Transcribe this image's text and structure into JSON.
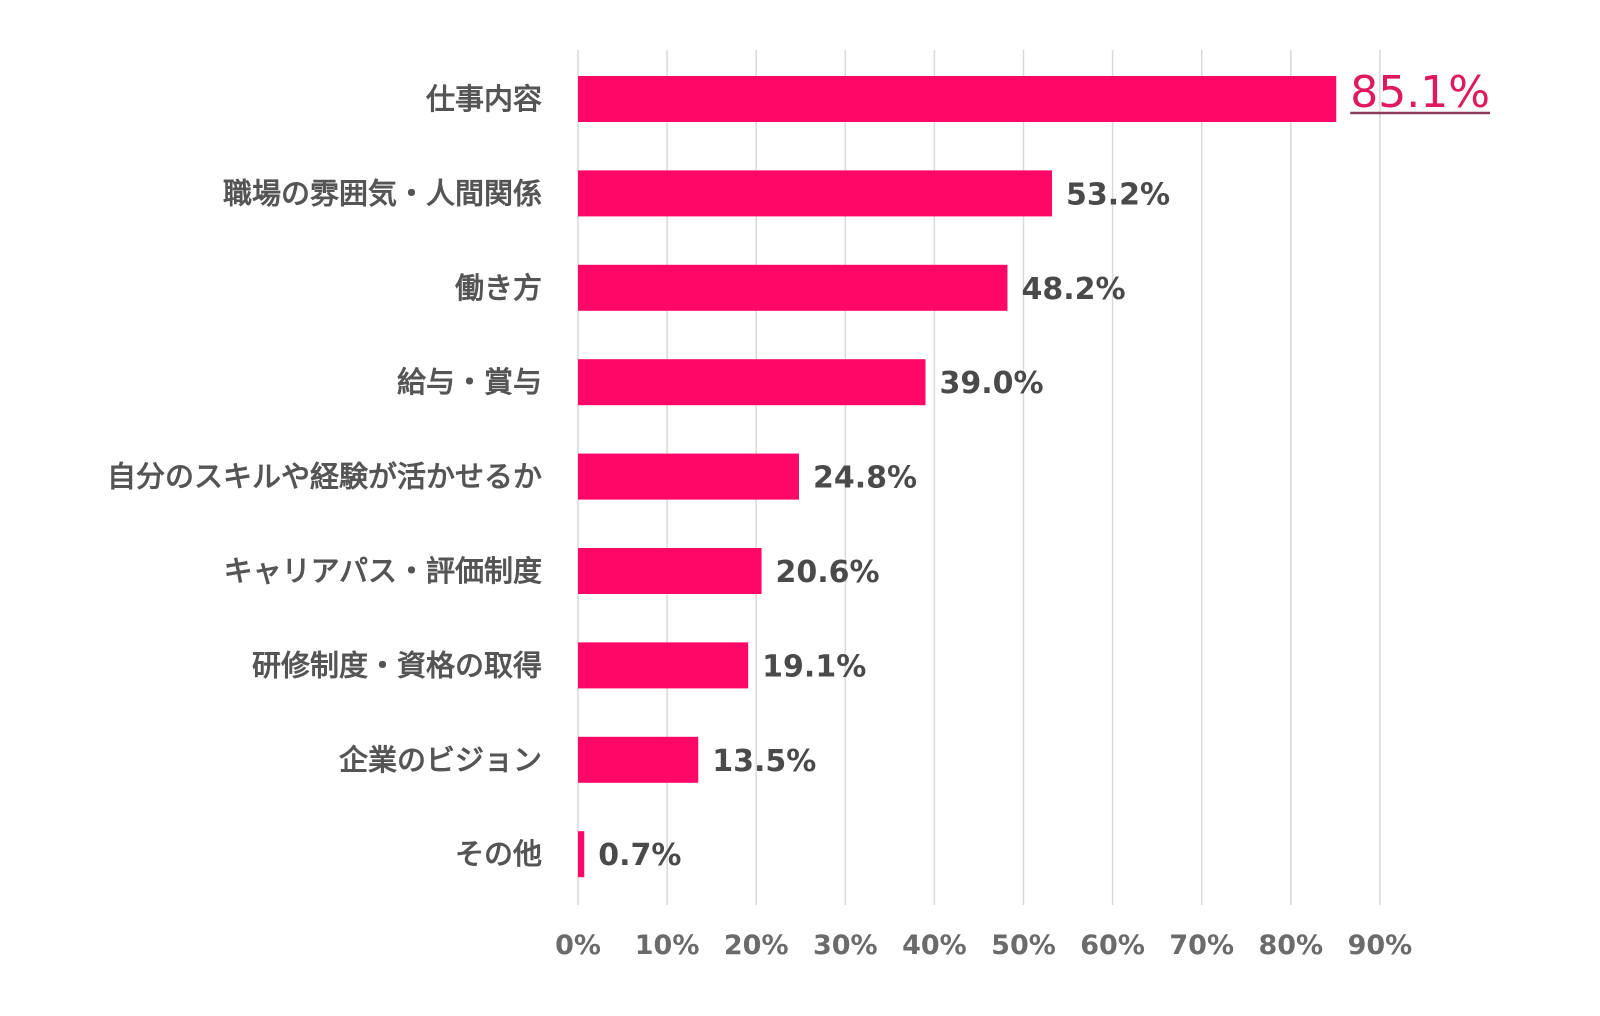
{
  "chart_data": {
    "type": "bar",
    "orientation": "horizontal",
    "categories": [
      "仕事内容",
      "職場の雰囲気・人間関係",
      "働き方",
      "給与・賞与",
      "自分のスキルや経験が活かせるか",
      "キャリアパス・評価制度",
      "研修制度・資格の取得",
      "企業のビジョン",
      "その他"
    ],
    "values": [
      85.1,
      53.2,
      48.2,
      39.0,
      24.8,
      20.6,
      19.1,
      13.5,
      0.7
    ],
    "value_labels": [
      "85.1%",
      "53.2%",
      "48.2%",
      "39.0%",
      "24.8%",
      "20.6%",
      "19.1%",
      "13.5%",
      "0.7%"
    ],
    "highlight_index": 0,
    "xlim": [
      0,
      90
    ],
    "x_ticks": [
      "0%",
      "10%",
      "20%",
      "30%",
      "40%",
      "50%",
      "60%",
      "70%",
      "80%",
      "90%"
    ],
    "grid": true,
    "colors": {
      "bar": "#ff0766",
      "highlight_label": "#e0185f",
      "grid": "#d9d9d9"
    }
  }
}
